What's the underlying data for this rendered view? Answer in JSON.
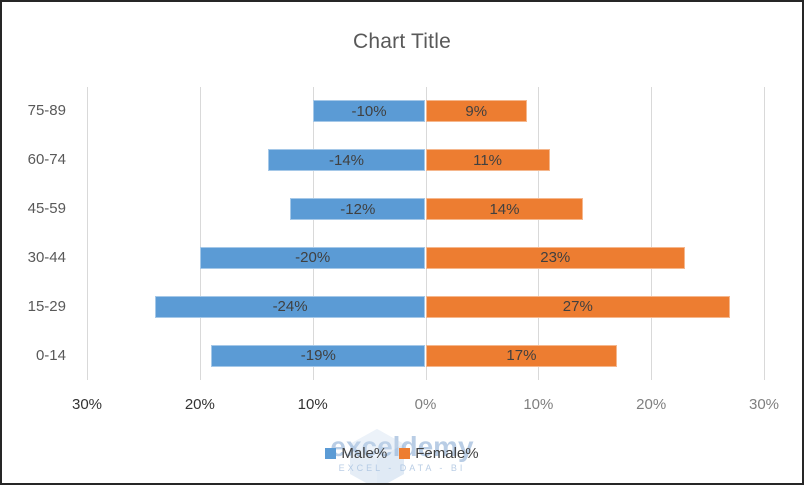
{
  "title": "Chart Title",
  "colors": {
    "male": "#5B9BD5",
    "female": "#ED7D31",
    "data_label": "#404040",
    "axis_text": "#595959",
    "grid": "#D9D9D9",
    "tick_dark": "#333333",
    "tick_light": "#7F7F7F",
    "watermark_blue": "#80A4D0"
  },
  "chart_data": {
    "type": "bar",
    "orientation": "horizontal",
    "title": "Chart Title",
    "categories": [
      "75-89",
      "60-74",
      "45-59",
      "30-44",
      "15-29",
      "0-14"
    ],
    "series": [
      {
        "name": "Male%",
        "color": "#5B9BD5",
        "values": [
          -10,
          -14,
          -12,
          -20,
          -24,
          -19
        ],
        "labels": [
          "-10%",
          "-14%",
          "-12%",
          "-20%",
          "-24%",
          "-19%"
        ]
      },
      {
        "name": "Female%",
        "color": "#ED7D31",
        "values": [
          9,
          11,
          14,
          23,
          27,
          17
        ],
        "labels": [
          "9%",
          "11%",
          "14%",
          "23%",
          "27%",
          "17%"
        ]
      }
    ],
    "xlim": [
      -30,
      30
    ],
    "x_ticks": [
      {
        "label": "30%",
        "value": -30,
        "dark": true
      },
      {
        "label": "20%",
        "value": -20,
        "dark": true
      },
      {
        "label": "10%",
        "value": -10,
        "dark": true
      },
      {
        "label": "0%",
        "value": 0,
        "dark": false
      },
      {
        "label": "10%",
        "value": 10,
        "dark": false
      },
      {
        "label": "20%",
        "value": 20,
        "dark": false
      },
      {
        "label": "30%",
        "value": 30,
        "dark": false
      }
    ],
    "legend": [
      "Male%",
      "Female%"
    ],
    "legend_position": "bottom",
    "grid": "vertical"
  },
  "watermark": {
    "brand": "exceldemy",
    "tagline": "EXCEL - DATA - BI"
  }
}
